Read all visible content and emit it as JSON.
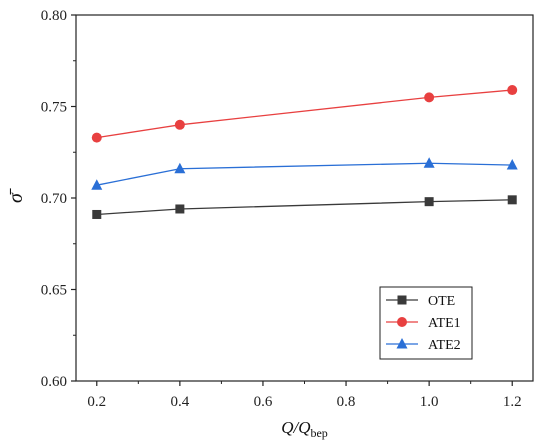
{
  "chart_data": {
    "type": "line",
    "title": "",
    "xlabel": {
      "main": "Q/Q",
      "sub": "bep"
    },
    "ylabel": "σ̄",
    "xlim": [
      0.15,
      1.25
    ],
    "ylim": [
      0.6,
      0.8
    ],
    "xticks": [
      0.2,
      0.4,
      0.6,
      0.8,
      1.0,
      1.2
    ],
    "xtick_labels": [
      "0.2",
      "0.4",
      "0.6",
      "0.8",
      "1.0",
      "1.2"
    ],
    "yticks": [
      0.6,
      0.65,
      0.7,
      0.75,
      0.8
    ],
    "ytick_labels": [
      "0.60",
      "0.65",
      "0.70",
      "0.75",
      "0.80"
    ],
    "grid": false,
    "legend_position": "bottom-right",
    "x": [
      0.2,
      0.4,
      1.0,
      1.2
    ],
    "series": [
      {
        "name": "OTE",
        "values": [
          0.691,
          0.694,
          0.698,
          0.699
        ],
        "color": "#3a3a3a",
        "marker": "square"
      },
      {
        "name": "ATE1",
        "values": [
          0.733,
          0.74,
          0.755,
          0.759
        ],
        "color": "#e84040",
        "marker": "circle"
      },
      {
        "name": "ATE2",
        "values": [
          0.707,
          0.716,
          0.719,
          0.718
        ],
        "color": "#2a6fd6",
        "marker": "triangle"
      }
    ]
  }
}
